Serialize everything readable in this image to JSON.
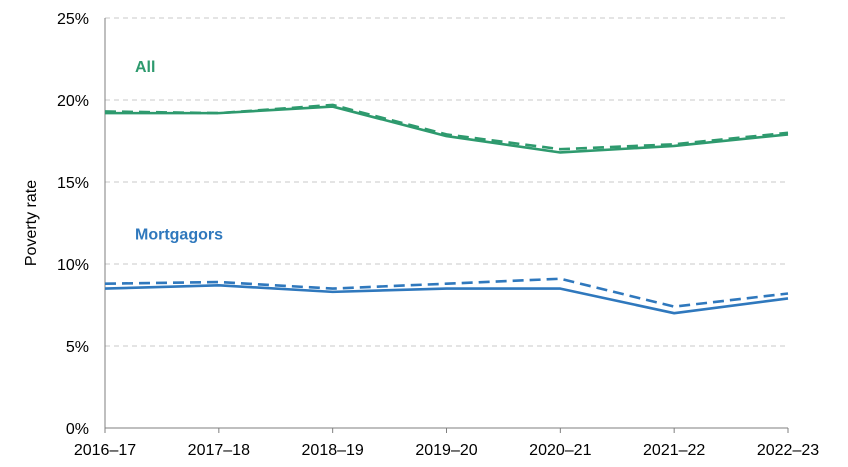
{
  "chart_data": {
    "type": "line",
    "title": "",
    "xlabel": "",
    "ylabel": "Poverty rate",
    "ylim": [
      0,
      25
    ],
    "yticks": [
      0,
      5,
      10,
      15,
      20,
      25
    ],
    "ytick_labels": [
      "0%",
      "5%",
      "10%",
      "15%",
      "20%",
      "25%"
    ],
    "grid": true,
    "categories": [
      "2016–17",
      "2017–18",
      "2018–19",
      "2019–20",
      "2020–21",
      "2021–22",
      "2022–23"
    ],
    "series": [
      {
        "name": "All",
        "group": "All",
        "style": "solid",
        "color": "#2e9a6e",
        "values": [
          19.2,
          19.2,
          19.6,
          17.8,
          16.8,
          17.2,
          17.9
        ]
      },
      {
        "name": "All (dashed)",
        "group": "All",
        "style": "dashed",
        "color": "#2e9a6e",
        "values": [
          19.3,
          19.2,
          19.7,
          17.9,
          17.0,
          17.3,
          18.0
        ]
      },
      {
        "name": "Mortgagors",
        "group": "Mortgagors",
        "style": "solid",
        "color": "#2f78bd",
        "values": [
          8.5,
          8.7,
          8.3,
          8.5,
          8.5,
          7.0,
          7.9
        ]
      },
      {
        "name": "Mortgagors (dashed)",
        "group": "Mortgagors",
        "style": "dashed",
        "color": "#2f78bd",
        "values": [
          8.8,
          8.9,
          8.5,
          8.8,
          9.1,
          7.4,
          8.2
        ]
      }
    ],
    "annotations": [
      {
        "text": "All",
        "color": "#2e9a6e",
        "x_index": 0,
        "y": 21.7
      },
      {
        "text": "Mortgagors",
        "color": "#2f78bd",
        "x_index": 0,
        "y": 11.5
      }
    ]
  }
}
